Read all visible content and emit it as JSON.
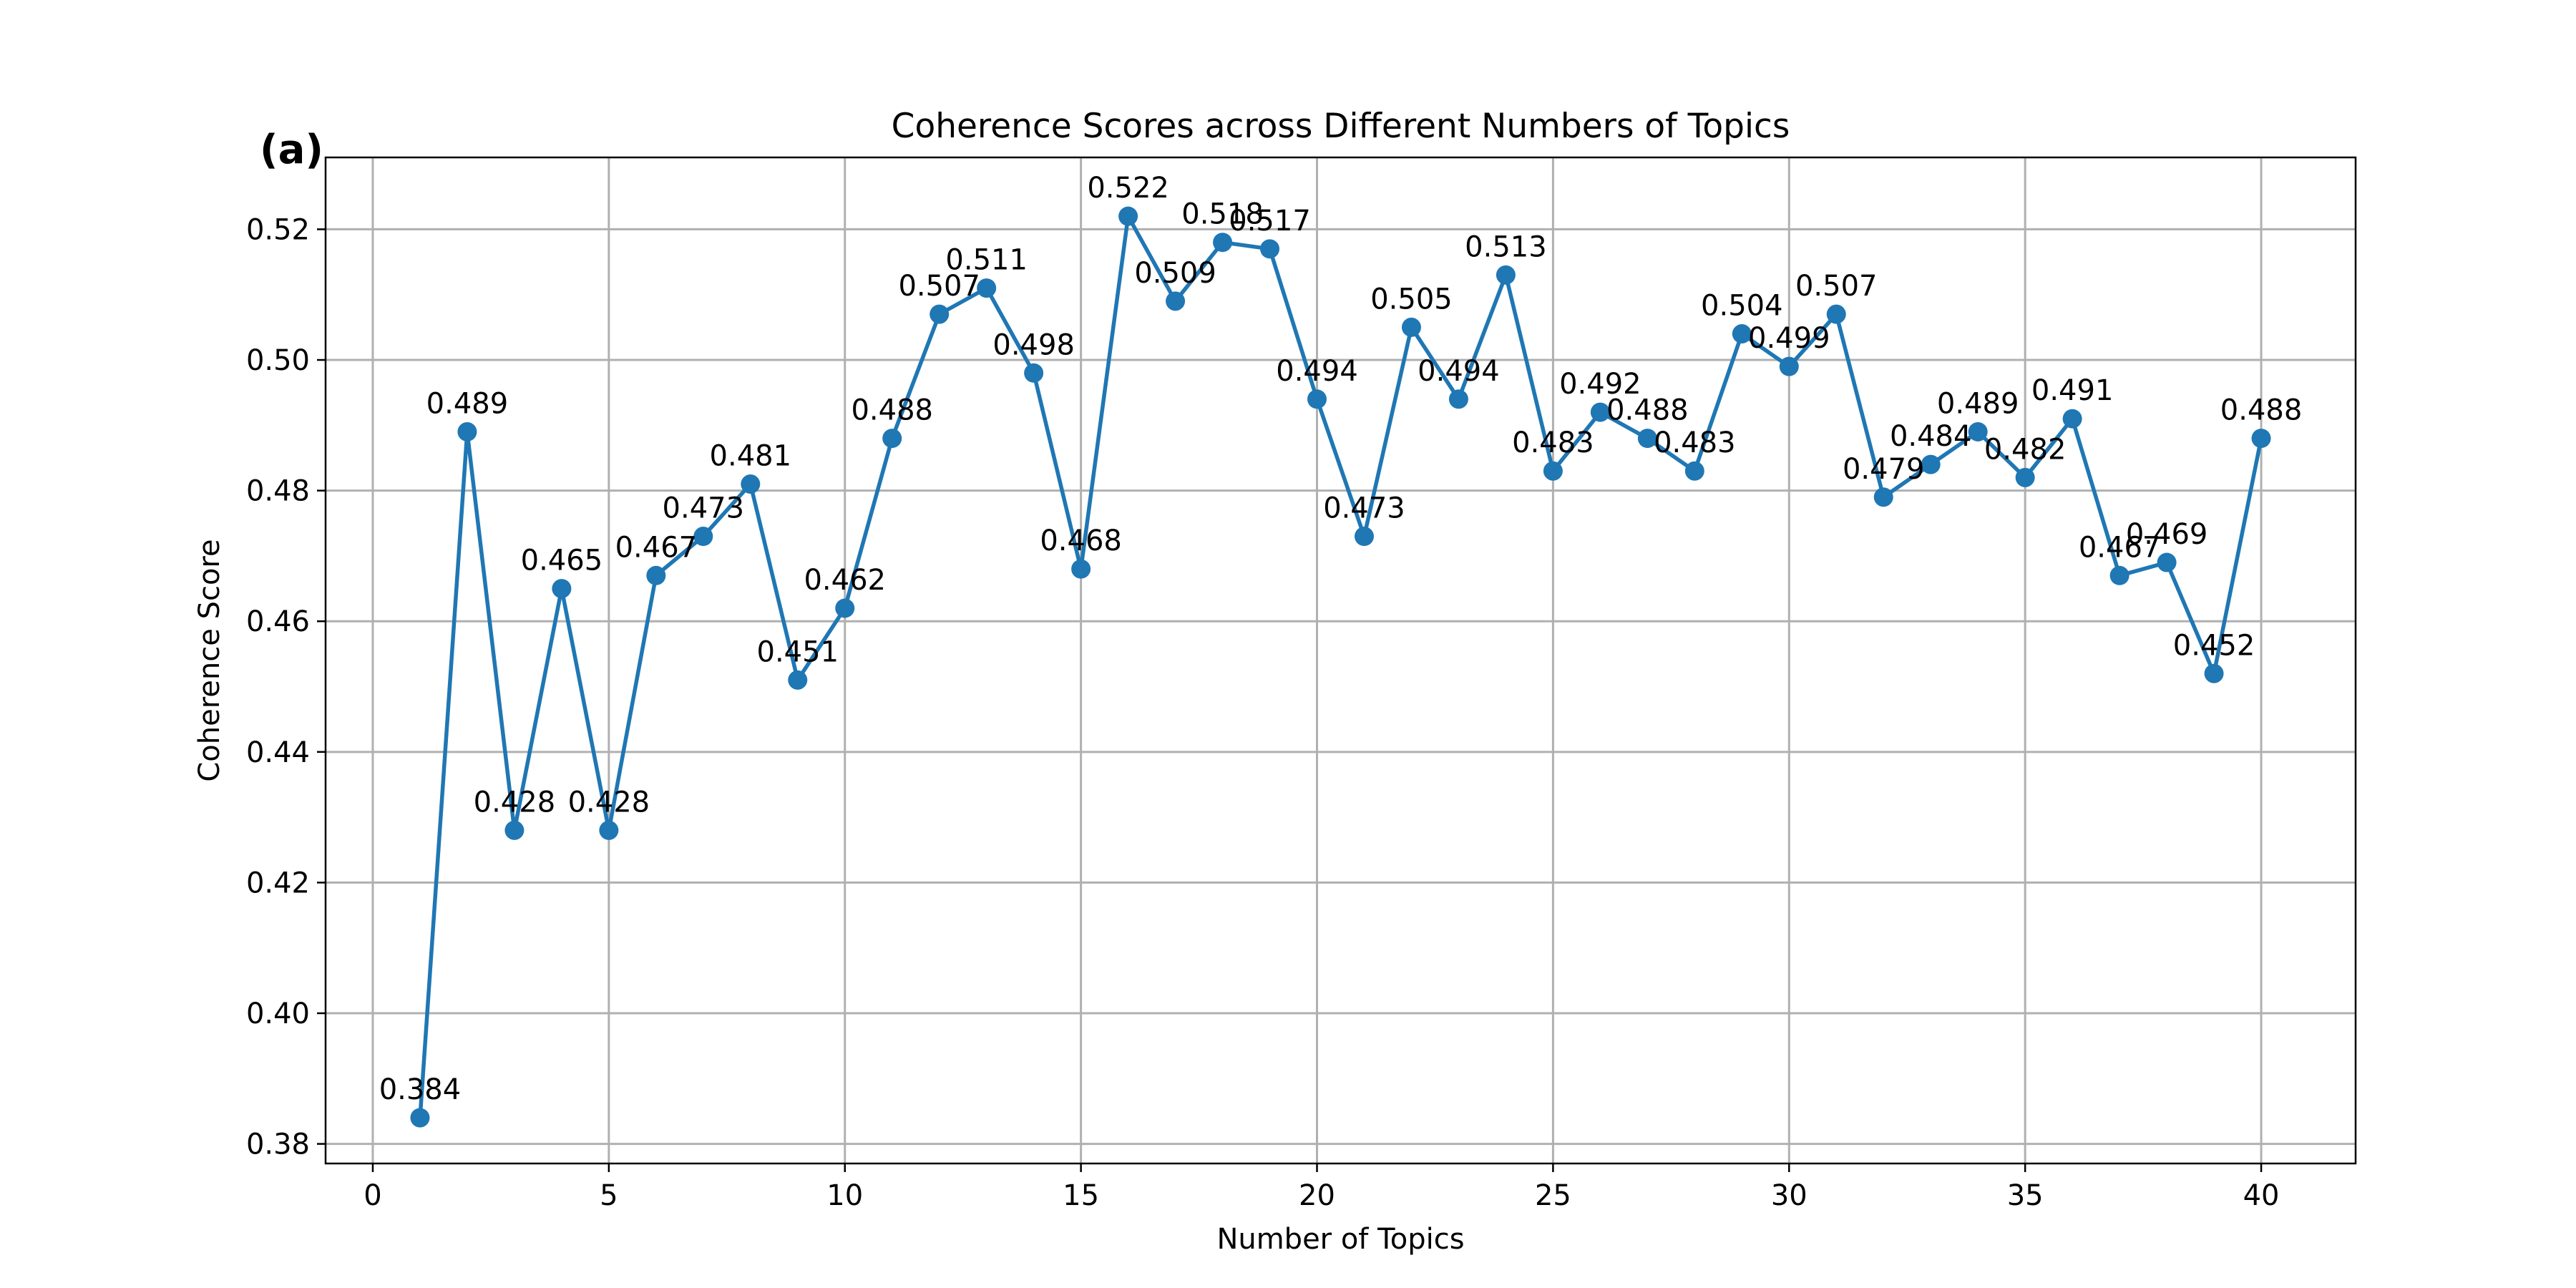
{
  "chart_data": {
    "type": "line",
    "panel_label": "(a)",
    "title": "Coherence Scores across Different Numbers of Topics",
    "xlabel": "Number of Topics",
    "ylabel": "Coherence Score",
    "xlim": [
      -1,
      42
    ],
    "ylim": [
      0.377,
      0.531
    ],
    "xticks": [
      0,
      5,
      10,
      15,
      20,
      25,
      30,
      35,
      40
    ],
    "yticks": [
      0.38,
      0.4,
      0.42,
      0.44,
      0.46,
      0.48,
      0.5,
      0.52
    ],
    "ytick_labels": [
      "0.38",
      "0.40",
      "0.42",
      "0.44",
      "0.46",
      "0.48",
      "0.50",
      "0.52"
    ],
    "grid": true,
    "color": "#1f77b4",
    "series": [
      {
        "x": [
          1,
          2,
          3,
          4,
          5,
          6,
          7,
          8,
          9,
          10,
          11,
          12,
          13,
          14,
          15,
          16,
          17,
          18,
          19,
          20,
          21,
          22,
          23,
          24,
          25,
          26,
          27,
          28,
          29,
          30,
          31,
          32,
          33,
          34,
          35,
          36,
          37,
          38,
          39,
          40
        ],
        "values": [
          0.384,
          0.489,
          0.428,
          0.465,
          0.428,
          0.467,
          0.473,
          0.481,
          0.451,
          0.462,
          0.488,
          0.507,
          0.511,
          0.498,
          0.468,
          0.522,
          0.509,
          0.518,
          0.517,
          0.494,
          0.473,
          0.505,
          0.494,
          0.513,
          0.483,
          0.492,
          0.488,
          0.483,
          0.504,
          0.499,
          0.507,
          0.479,
          0.484,
          0.489,
          0.482,
          0.491,
          0.467,
          0.469,
          0.452,
          0.488
        ],
        "labels": [
          "0.384",
          "0.489",
          "0.428",
          "0.465",
          "0.428",
          "0.467",
          "0.473",
          "0.481",
          "0.451",
          "0.462",
          "0.488",
          "0.507",
          "0.511",
          "0.498",
          "0.468",
          "0.522",
          "0.509",
          "0.518",
          "0.517",
          "0.494",
          "0.473",
          "0.505",
          "0.494",
          "0.513",
          "0.483",
          "0.492",
          "0.488",
          "0.483",
          "0.504",
          "0.499",
          "0.507",
          "0.479",
          "0.484",
          "0.489",
          "0.482",
          "0.491",
          "0.467",
          "0.469",
          "0.452",
          "0.488"
        ]
      }
    ]
  }
}
